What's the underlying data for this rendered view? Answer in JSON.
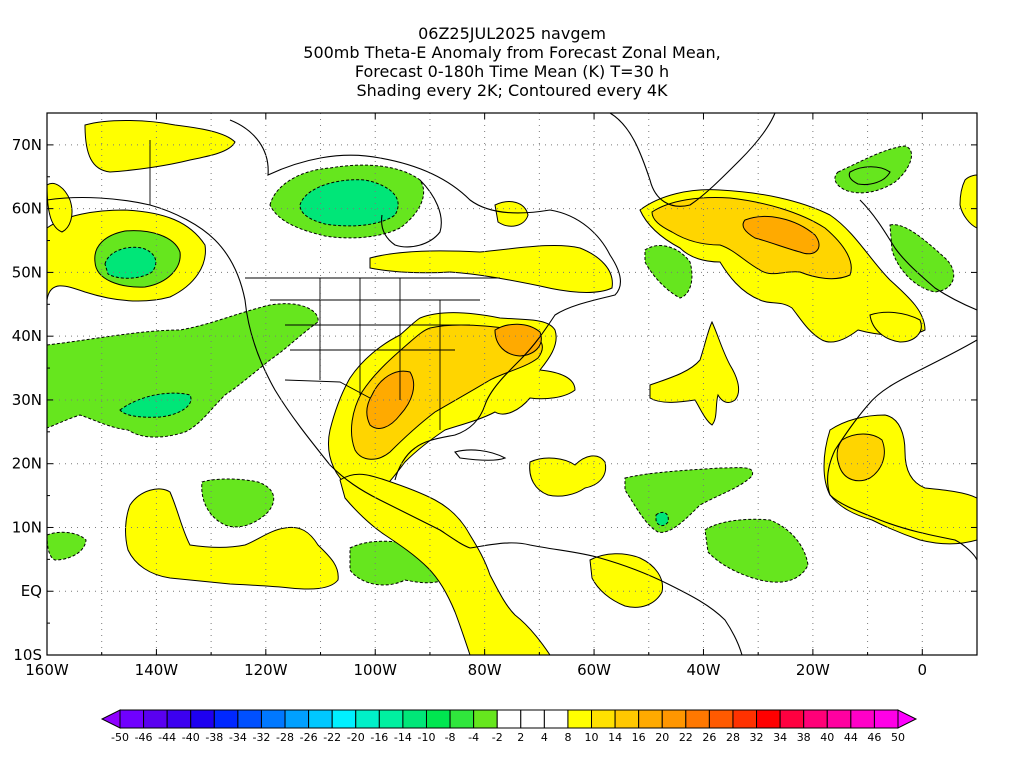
{
  "title": {
    "lines": [
      "06Z25JUL2025 navgem",
      "500mb Theta-E Anomaly from Forecast Zonal Mean,",
      "Forecast 0-180h Time Mean (K) T=30 h",
      "Shading every 2K; Contoured every 4K"
    ]
  },
  "axes": {
    "lat_labels": [
      "70N",
      "60N",
      "50N",
      "40N",
      "30N",
      "20N",
      "10N",
      "EQ",
      "10S"
    ],
    "lat_values": [
      70,
      60,
      50,
      40,
      30,
      20,
      10,
      0,
      -10
    ],
    "lon_labels": [
      "160W",
      "140W",
      "120W",
      "100W",
      "80W",
      "60W",
      "40W",
      "20W",
      "0"
    ],
    "lon_values": [
      -160,
      -140,
      -120,
      -100,
      -80,
      -60,
      -40,
      -20,
      0
    ],
    "lon_range": [
      -160,
      10
    ],
    "lat_range": [
      -10,
      75
    ],
    "grid": true
  },
  "colorbar": {
    "labels": [
      "-50",
      "-46",
      "-44",
      "-40",
      "-38",
      "-34",
      "-32",
      "-28",
      "-26",
      "-22",
      "-20",
      "-16",
      "-14",
      "-10",
      "-8",
      "-4",
      "-2",
      "2",
      "4",
      "8",
      "10",
      "14",
      "16",
      "20",
      "22",
      "26",
      "28",
      "32",
      "34",
      "38",
      "40",
      "44",
      "46",
      "50"
    ],
    "colors": [
      "#8f00ff",
      "#7000ff",
      "#5a00f0",
      "#3c00f0",
      "#1e00f0",
      "#0028ff",
      "#0050ff",
      "#0078ff",
      "#00a0ff",
      "#00c8ff",
      "#00f0ff",
      "#00f0c8",
      "#00f0a0",
      "#00e678",
      "#00e650",
      "#30e63c",
      "#66e61e",
      "#ffffff",
      "#ffffff",
      "#ffffff",
      "#ffff00",
      "#ffe100",
      "#ffc800",
      "#ffaa00",
      "#ff9600",
      "#ff7800",
      "#ff5a00",
      "#ff3200",
      "#ff0000",
      "#ff0040",
      "#ff0078",
      "#ff00a0",
      "#ff00c8",
      "#ff00e6",
      "#ff00ff"
    ]
  },
  "legend_colors": {
    "positive_light": "#ffff00",
    "positive_medium": "#ffd500",
    "positive_strong": "#ffaa00",
    "negative_light": "#66e61e",
    "negative_strong": "#00e678"
  }
}
